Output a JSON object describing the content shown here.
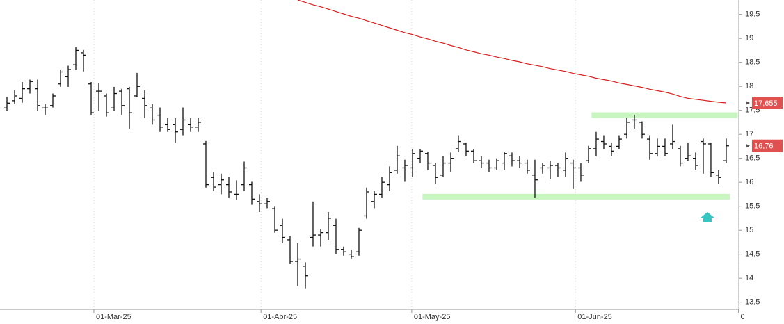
{
  "chart_data": {
    "type": "ohlc",
    "categories": [
      null,
      null,
      null,
      null,
      null,
      null,
      null,
      null,
      null,
      null,
      null,
      null,
      null,
      null,
      null,
      null,
      null,
      null,
      null,
      null,
      null,
      null,
      null,
      null,
      null,
      null,
      null,
      null,
      null,
      null,
      null,
      null,
      null,
      null,
      null,
      null,
      null,
      null,
      null,
      null,
      null,
      null,
      null,
      null,
      null,
      null,
      null,
      null,
      null,
      null,
      null,
      null,
      null,
      null,
      null,
      null,
      null,
      null,
      null,
      null,
      null,
      null,
      null,
      null,
      null,
      null,
      null,
      null,
      null,
      null,
      null,
      null,
      null,
      null,
      null,
      null,
      null,
      null,
      null,
      null,
      null,
      null,
      null,
      null,
      null,
      null,
      null,
      null,
      null,
      null,
      null,
      null,
      null,
      null,
      null
    ],
    "open": [
      17.55,
      17.7,
      17.75,
      17.95,
      17.95,
      17.55,
      17.6,
      18.05,
      18.2,
      18.45,
      18.7,
      18.05,
      17.9,
      17.8,
      17.55,
      17.9,
      17.95,
      17.8,
      17.75,
      17.55,
      17.4,
      17.2,
      17.2,
      17.1,
      17.2,
      17.15,
      16.8,
      16.1,
      15.95,
      15.95,
      15.75,
      15.95,
      15.95,
      15.6,
      15.55,
      15.45,
      15.1,
      14.8,
      14.35,
      14.25,
      14.85,
      14.9,
      14.95,
      15.1,
      14.6,
      14.5,
      14.55,
      15.3,
      15.6,
      15.75,
      15.95,
      16.25,
      16.3,
      16.3,
      16.5,
      16.6,
      16.35,
      16.15,
      16.4,
      16.7,
      16.8,
      16.65,
      16.45,
      16.4,
      16.3,
      16.4,
      16.55,
      16.45,
      16.4,
      16.15,
      16.3,
      16.3,
      16.35,
      16.25,
      16.4,
      16.3,
      16.45,
      16.7,
      16.85,
      16.75,
      16.75,
      17.0,
      17.3,
      17.25,
      16.9,
      16.6,
      16.75,
      16.8,
      16.7,
      16.5,
      16.5,
      16.85,
      16.8,
      16.15,
      16.45
    ],
    "high": [
      17.78,
      17.92,
      18.09,
      18.14,
      18.14,
      17.63,
      17.85,
      18.35,
      18.43,
      18.82,
      18.76,
      18.09,
      18.06,
      17.85,
      17.99,
      17.95,
      17.99,
      18.28,
      17.92,
      17.63,
      17.56,
      17.34,
      17.34,
      17.56,
      17.34,
      17.34,
      16.86,
      16.21,
      16.18,
      16.11,
      16.04,
      16.43,
      16.01,
      15.75,
      15.67,
      15.49,
      15.24,
      14.88,
      14.73,
      14.33,
      15.6,
      15.02,
      15.38,
      15.24,
      14.66,
      14.59,
      15.05,
      15.89,
      15.82,
      16.11,
      16.33,
      16.76,
      16.47,
      16.69,
      16.69,
      16.64,
      16.4,
      16.54,
      16.62,
      16.98,
      16.83,
      16.69,
      16.54,
      16.47,
      16.5,
      16.64,
      16.62,
      16.54,
      16.47,
      16.47,
      16.4,
      16.44,
      16.4,
      16.62,
      16.47,
      16.4,
      16.76,
      17.05,
      16.98,
      16.83,
      16.98,
      17.34,
      17.41,
      17.27,
      16.98,
      16.91,
      16.91,
      17.2,
      16.76,
      16.83,
      16.62,
      16.91,
      16.83,
      16.25,
      16.91
    ],
    "low": [
      17.49,
      17.63,
      17.66,
      17.85,
      17.49,
      17.41,
      17.56,
      17.99,
      17.99,
      18.35,
      18.31,
      17.41,
      17.49,
      17.37,
      17.49,
      17.41,
      17.12,
      17.78,
      17.34,
      17.2,
      17.05,
      17.05,
      16.83,
      16.98,
      17.05,
      17.05,
      15.89,
      15.82,
      15.75,
      15.67,
      15.63,
      15.82,
      15.53,
      15.38,
      15.46,
      14.95,
      14.73,
      14.3,
      13.83,
      13.79,
      14.66,
      14.66,
      14.8,
      14.51,
      14.47,
      14.41,
      14.47,
      15.24,
      15.46,
      15.67,
      15.82,
      16.18,
      16.01,
      16.11,
      16.4,
      16.25,
      15.96,
      16.11,
      16.21,
      16.64,
      16.54,
      16.4,
      16.3,
      16.21,
      16.25,
      16.25,
      16.33,
      16.3,
      16.18,
      15.67,
      16.18,
      16.07,
      16.11,
      16.11,
      15.86,
      16.01,
      16.4,
      16.54,
      16.69,
      16.54,
      16.69,
      16.91,
      17.12,
      16.91,
      16.47,
      16.54,
      16.54,
      16.69,
      16.33,
      16.44,
      16.25,
      16.18,
      16.11,
      15.96,
      16.4
    ],
    "close": [
      17.65,
      17.8,
      17.95,
      18.1,
      17.6,
      17.55,
      17.8,
      18.3,
      18.35,
      18.75,
      18.65,
      17.45,
      17.9,
      17.45,
      17.85,
      17.6,
      17.45,
      18.0,
      17.6,
      17.3,
      17.15,
      17.1,
      17.05,
      17.3,
      17.15,
      17.25,
      15.95,
      15.9,
      16.05,
      15.8,
      15.75,
      16.3,
      15.65,
      15.55,
      15.6,
      15.0,
      14.85,
      14.35,
      14.4,
      14.05,
      14.9,
      14.95,
      15.25,
      14.6,
      14.55,
      14.45,
      15.0,
      15.8,
      15.75,
      16.0,
      16.2,
      16.55,
      16.35,
      16.6,
      16.65,
      16.4,
      16.1,
      16.4,
      16.5,
      16.85,
      16.65,
      16.45,
      16.4,
      16.3,
      16.45,
      16.6,
      16.45,
      16.4,
      16.25,
      16.05,
      16.35,
      16.35,
      16.3,
      16.5,
      16.3,
      16.15,
      16.7,
      16.9,
      16.8,
      16.65,
      16.9,
      17.25,
      17.3,
      17.0,
      16.6,
      16.75,
      16.6,
      16.85,
      16.4,
      16.55,
      16.35,
      16.8,
      16.2,
      16.1,
      16.76
    ],
    "color": "#111111",
    "moving_average": {
      "color": "#d42020",
      "values": [
        null,
        null,
        null,
        null,
        null,
        null,
        null,
        null,
        null,
        null,
        null,
        null,
        null,
        null,
        null,
        null,
        null,
        null,
        null,
        null,
        null,
        null,
        null,
        null,
        null,
        null,
        null,
        null,
        null,
        null,
        null,
        null,
        null,
        null,
        null,
        null,
        null,
        null,
        19.8,
        19.75,
        19.7,
        19.66,
        19.61,
        19.56,
        19.51,
        19.46,
        19.42,
        19.37,
        19.32,
        19.27,
        19.22,
        19.17,
        19.12,
        19.08,
        19.03,
        18.99,
        18.94,
        18.9,
        18.85,
        18.81,
        18.76,
        18.72,
        18.68,
        18.65,
        18.61,
        18.58,
        18.54,
        18.51,
        18.47,
        18.44,
        18.41,
        18.37,
        18.34,
        18.31,
        18.27,
        18.24,
        18.21,
        18.17,
        18.14,
        18.11,
        18.07,
        18.04,
        18.01,
        17.98,
        17.94,
        17.91,
        17.88,
        17.84,
        17.79,
        17.75,
        17.73,
        17.71,
        17.69,
        17.67,
        17.655
      ]
    },
    "levels": [
      {
        "value": 17.4,
        "from": 76.4,
        "to": 95.5,
        "color": "#c8f5c0"
      },
      {
        "value": 15.7,
        "from": 54.3,
        "to": 94.5,
        "color": "#c8f5c0"
      }
    ],
    "price_labels": [
      {
        "value": 17.655,
        "label": "17,655",
        "color": "#e05050"
      },
      {
        "value": 16.76,
        "label": "16,76",
        "color": "#e05050"
      }
    ],
    "xlim": [
      -0.91,
      95.64
    ],
    "ylim": [
      13.35,
      19.8
    ],
    "xticks": [
      {
        "value": 11.36,
        "label": "01-Mar-25"
      },
      {
        "value": 33.2,
        "label": "01-Abr-25"
      },
      {
        "value": 52.9,
        "label": "01-May-25"
      },
      {
        "value": 74.3,
        "label": "01-Jun-25"
      },
      {
        "value": 95.6,
        "label": "0"
      }
    ],
    "yticks": [
      {
        "value": 13.5,
        "label": "13,5"
      },
      14,
      {
        "value": 14.5,
        "label": "14,5"
      },
      15,
      {
        "value": 15.5,
        "label": "15,5"
      },
      16,
      {
        "value": 16.5,
        "label": "16,5"
      },
      17,
      {
        "value": 17.5,
        "label": "17,5"
      },
      18,
      {
        "value": 18.5,
        "label": "18,5"
      },
      19,
      {
        "value": 19.5,
        "label": "19,5"
      }
    ],
    "grid": true
  }
}
